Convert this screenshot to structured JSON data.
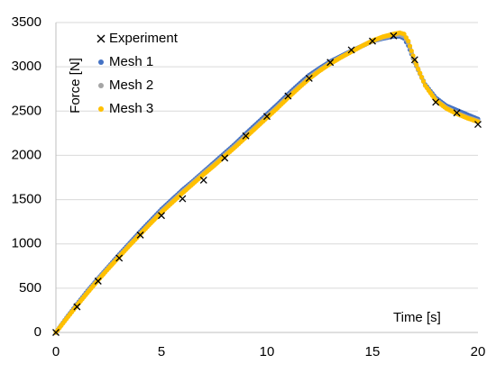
{
  "chart_data": {
    "type": "scatter",
    "xlabel": "Time [s]",
    "ylabel": "Force [N]",
    "xlim": [
      0,
      20
    ],
    "ylim": [
      0,
      3500
    ],
    "xticks": [
      0,
      5,
      10,
      15,
      20
    ],
    "yticks": [
      0,
      500,
      1000,
      1500,
      2000,
      2500,
      3000,
      3500
    ],
    "grid": "horizontal",
    "legend": "top-left",
    "series": [
      {
        "name": "Experiment",
        "marker": "x",
        "color": "#000000",
        "x": [
          0,
          1,
          2,
          3,
          4,
          5,
          6,
          7,
          8,
          9,
          10,
          11,
          12,
          13,
          14,
          15,
          16,
          17,
          18,
          19,
          20
        ],
        "y": [
          0,
          290,
          580,
          840,
          1100,
          1320,
          1510,
          1720,
          1970,
          2220,
          2440,
          2670,
          2870,
          3050,
          3190,
          3290,
          3350,
          3080,
          2600,
          2480,
          2350
        ]
      },
      {
        "name": "Mesh 1",
        "marker": "dot",
        "color": "#4472C4",
        "x": [
          0,
          0.5,
          1,
          1.5,
          2,
          2.5,
          3,
          3.5,
          4,
          4.5,
          5,
          5.5,
          6,
          6.5,
          7,
          7.5,
          8,
          8.5,
          9,
          9.5,
          10,
          10.5,
          11,
          11.5,
          12,
          12.5,
          13,
          13.5,
          14,
          14.5,
          15,
          15.5,
          16,
          16.3,
          16.5,
          16.7,
          17,
          17.5,
          18,
          18.5,
          19,
          19.5,
          20
        ],
        "y": [
          0,
          165,
          320,
          470,
          610,
          745,
          880,
          1010,
          1140,
          1265,
          1390,
          1500,
          1610,
          1710,
          1815,
          1920,
          2025,
          2130,
          2245,
          2355,
          2465,
          2575,
          2690,
          2800,
          2905,
          2985,
          3060,
          3120,
          3180,
          3235,
          3290,
          3320,
          3345,
          3345,
          3320,
          3240,
          3050,
          2800,
          2650,
          2560,
          2510,
          2460,
          2410
        ]
      },
      {
        "name": "Mesh 2",
        "marker": "dot",
        "color": "#A5A5A5",
        "x": [
          0,
          0.5,
          1,
          1.5,
          2,
          2.5,
          3,
          3.5,
          4,
          4.5,
          5,
          5.5,
          6,
          6.5,
          7,
          7.5,
          8,
          8.5,
          9,
          9.5,
          10,
          10.5,
          11,
          11.5,
          12,
          12.5,
          13,
          13.5,
          14,
          14.5,
          15,
          15.5,
          16,
          16.3,
          16.5,
          16.7,
          17,
          17.5,
          18,
          18.5,
          19,
          19.5,
          20
        ],
        "y": [
          0,
          160,
          310,
          460,
          600,
          735,
          865,
          995,
          1120,
          1245,
          1370,
          1480,
          1590,
          1695,
          1800,
          1900,
          2005,
          2110,
          2220,
          2330,
          2440,
          2550,
          2665,
          2775,
          2880,
          2965,
          3045,
          3110,
          3175,
          3235,
          3290,
          3330,
          3360,
          3365,
          3345,
          3270,
          3050,
          2790,
          2630,
          2540,
          2480,
          2430,
          2390
        ]
      },
      {
        "name": "Mesh 3",
        "marker": "dot",
        "color": "#FFC000",
        "x": [
          0,
          0.5,
          1,
          1.5,
          2,
          2.5,
          3,
          3.5,
          4,
          4.5,
          5,
          5.5,
          6,
          6.5,
          7,
          7.5,
          8,
          8.5,
          9,
          9.5,
          10,
          10.5,
          11,
          11.5,
          12,
          12.5,
          13,
          13.5,
          14,
          14.5,
          15,
          15.5,
          16,
          16.3,
          16.5,
          16.7,
          17,
          17.5,
          18,
          18.5,
          19,
          19.5,
          20
        ],
        "y": [
          0,
          155,
          305,
          450,
          590,
          725,
          855,
          985,
          1110,
          1235,
          1355,
          1465,
          1575,
          1680,
          1785,
          1885,
          1990,
          2095,
          2205,
          2315,
          2425,
          2535,
          2650,
          2760,
          2865,
          2955,
          3035,
          3105,
          3170,
          3235,
          3295,
          3340,
          3370,
          3385,
          3370,
          3290,
          3070,
          2790,
          2620,
          2530,
          2470,
          2420,
          2380
        ]
      }
    ]
  }
}
